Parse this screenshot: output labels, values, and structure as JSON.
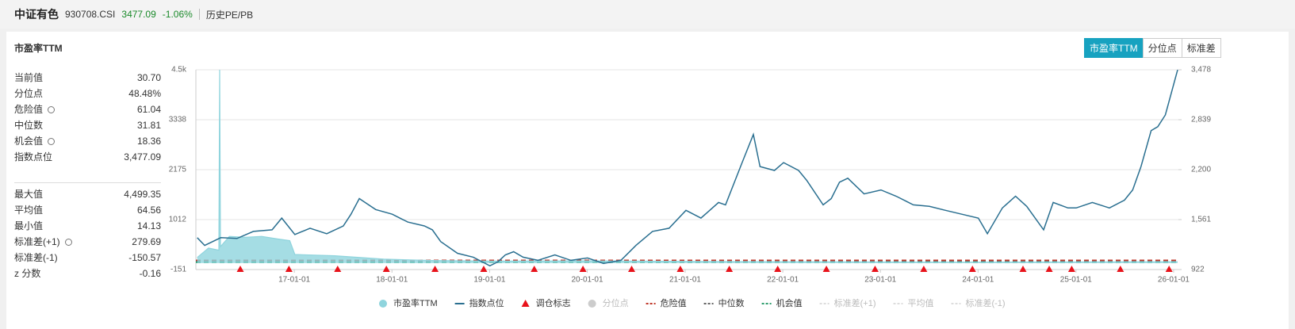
{
  "header": {
    "name": "中证有色",
    "code": "930708.CSI",
    "price": "3477.09",
    "change": "-1.06%",
    "tab": "历史PE/PB"
  },
  "panel": {
    "title": "市盈率TTM",
    "buttons": [
      "市盈率TTM",
      "分位点",
      "标准差"
    ]
  },
  "stats": [
    {
      "label": "当前值",
      "value": "30.70"
    },
    {
      "label": "分位点",
      "value": "48.48%"
    },
    {
      "label": "危险值",
      "value": "61.04"
    },
    {
      "label": "中位数",
      "value": "31.81"
    },
    {
      "label": "机会值",
      "value": "18.36"
    },
    {
      "label": "指数点位",
      "value": "3,477.09"
    },
    {
      "label": "最大值",
      "value": "4,499.35"
    },
    {
      "label": "平均值",
      "value": "64.56"
    },
    {
      "label": "最小值",
      "value": "14.13"
    },
    {
      "label": "标准差(+1)",
      "value": "279.69"
    },
    {
      "label": "标准差(-1)",
      "value": "-150.57"
    },
    {
      "label": "z 分数",
      "value": "-0.16"
    }
  ],
  "chart_data": {
    "type": "line",
    "xlim": [
      "2015-12-30",
      "2026-01-19"
    ],
    "xticks": [
      {
        "value": "2017-01-01",
        "label": "17-01-01"
      },
      {
        "value": "2018-01-01",
        "label": "18-01-01"
      },
      {
        "value": "2019-01-01",
        "label": "19-01-01"
      },
      {
        "value": "2020-01-01",
        "label": "20-01-01"
      },
      {
        "value": "2021-01-01",
        "label": "21-01-01"
      },
      {
        "value": "2022-01-01",
        "label": "22-01-01"
      },
      {
        "value": "2023-01-01",
        "label": "23-01-01"
      },
      {
        "value": "2024-01-01",
        "label": "24-01-01"
      },
      {
        "value": "2025-01-01",
        "label": "25-01-01"
      },
      {
        "value": "2026-01-01",
        "label": "26-01-01"
      }
    ],
    "ylim": [
      -151,
      4500
    ],
    "yticks": [
      {
        "value": 4500,
        "label": "4.5k"
      },
      3338,
      2175,
      1012,
      -151
    ],
    "y2lim": [
      922,
      3478
    ],
    "y2ticks": [
      {
        "value": 3478,
        "label": "3,478"
      },
      {
        "value": 2839,
        "label": "2,839"
      },
      {
        "value": 2200,
        "label": "2,200"
      },
      {
        "value": 1561,
        "label": "1,561"
      },
      922
    ],
    "grid": true,
    "series": [
      {
        "name": "市盈率TTM",
        "kind": "area",
        "color": "#8fd4dd",
        "axis": "y",
        "x": [
          "2016-01-04",
          "2016-02-15",
          "2016-03-25",
          "2016-03-28",
          "2016-03-31",
          "2016-05-03",
          "2016-07-01",
          "2016-09-01",
          "2016-11-01",
          "2016-12-15",
          "2017-01-03",
          "2017-06-01",
          "2017-12-01",
          "2018-06-01",
          "2019-01-02",
          "2020-01-02",
          "2021-01-04",
          "2022-01-04",
          "2023-01-03",
          "2024-01-02",
          "2025-01-02",
          "2026-01-16"
        ],
        "values": [
          130,
          350,
          300,
          4499.35,
          380,
          620,
          600,
          620,
          560,
          520,
          200,
          170,
          90,
          60,
          45,
          50,
          40,
          30,
          25,
          20,
          25,
          30.7
        ]
      },
      {
        "name": "指数点位",
        "kind": "line",
        "color": "#2a6f90",
        "axis": "y2",
        "x": [
          "2016-01-04",
          "2016-02-01",
          "2016-04-01",
          "2016-06-01",
          "2016-08-01",
          "2016-10-10",
          "2016-11-15",
          "2017-01-03",
          "2017-03-01",
          "2017-05-02",
          "2017-07-03",
          "2017-08-01",
          "2017-09-01",
          "2017-11-01",
          "2018-01-02",
          "2018-03-01",
          "2018-05-02",
          "2018-06-01",
          "2018-07-02",
          "2018-09-03",
          "2018-11-01",
          "2019-01-02",
          "2019-02-01",
          "2019-03-01",
          "2019-04-01",
          "2019-05-06",
          "2019-07-01",
          "2019-09-02",
          "2019-11-01",
          "2020-01-02",
          "2020-03-02",
          "2020-05-06",
          "2020-07-01",
          "2020-09-01",
          "2020-11-02",
          "2021-01-04",
          "2021-03-01",
          "2021-05-06",
          "2021-06-01",
          "2021-08-02",
          "2021-09-13",
          "2021-10-08",
          "2021-12-01",
          "2022-01-04",
          "2022-03-01",
          "2022-04-01",
          "2022-06-01",
          "2022-07-01",
          "2022-08-01",
          "2022-09-01",
          "2022-11-01",
          "2023-01-03",
          "2023-03-01",
          "2023-05-04",
          "2023-07-03",
          "2023-09-01",
          "2023-11-01",
          "2024-01-02",
          "2024-02-05",
          "2024-04-01",
          "2024-05-20",
          "2024-07-01",
          "2024-09-02",
          "2024-10-08",
          "2024-12-02",
          "2025-01-02",
          "2025-03-03",
          "2025-05-06",
          "2025-07-01",
          "2025-08-01",
          "2025-09-01",
          "2025-10-09",
          "2025-11-03",
          "2025-12-01",
          "2026-01-16"
        ],
        "values": [
          1330,
          1230,
          1330,
          1320,
          1410,
          1430,
          1580,
          1370,
          1450,
          1380,
          1480,
          1630,
          1830,
          1690,
          1630,
          1530,
          1480,
          1430,
          1280,
          1130,
          1080,
          970,
          1020,
          1110,
          1150,
          1080,
          1040,
          1110,
          1040,
          1070,
          1000,
          1040,
          1230,
          1410,
          1450,
          1680,
          1580,
          1780,
          1750,
          2290,
          2650,
          2240,
          2190,
          2290,
          2190,
          2060,
          1750,
          1830,
          2040,
          2090,
          1890,
          1940,
          1860,
          1750,
          1730,
          1680,
          1630,
          1580,
          1380,
          1710,
          1860,
          1730,
          1430,
          1780,
          1710,
          1710,
          1780,
          1710,
          1810,
          1940,
          2240,
          2700,
          2750,
          2900,
          3477.09
        ]
      },
      {
        "name": "调仓标志",
        "kind": "marker",
        "color": "#e8121a",
        "x": [
          "2016-06-13",
          "2016-12-12",
          "2017-06-12",
          "2017-12-11",
          "2018-06-11",
          "2018-12-10",
          "2019-06-17",
          "2019-12-16",
          "2020-06-15",
          "2020-12-14",
          "2021-06-15",
          "2021-12-13",
          "2022-06-13",
          "2022-12-12",
          "2023-06-12",
          "2023-12-11",
          "2024-06-17",
          "2024-09-23",
          "2024-12-16",
          "2025-06-16",
          "2025-12-15"
        ]
      },
      {
        "name": "分位点",
        "kind": "dot",
        "color": "#cccccc",
        "active": false
      },
      {
        "name": "危险值",
        "kind": "hline",
        "color": "#c0392b",
        "value": 61.04,
        "axis": "y"
      },
      {
        "name": "中位数",
        "kind": "hline",
        "color": "#666666",
        "value": 31.81,
        "axis": "y"
      },
      {
        "name": "机会值",
        "kind": "hline",
        "color": "#2f9e6e",
        "value": 18.36,
        "axis": "y"
      },
      {
        "name": "标准差(+1)",
        "kind": "hline",
        "color": "#dddddd",
        "active": false
      },
      {
        "name": "平均值",
        "kind": "hline",
        "color": "#dddddd",
        "active": false
      },
      {
        "name": "标准差(-1)",
        "kind": "hline",
        "color": "#dddddd",
        "active": false
      }
    ]
  }
}
